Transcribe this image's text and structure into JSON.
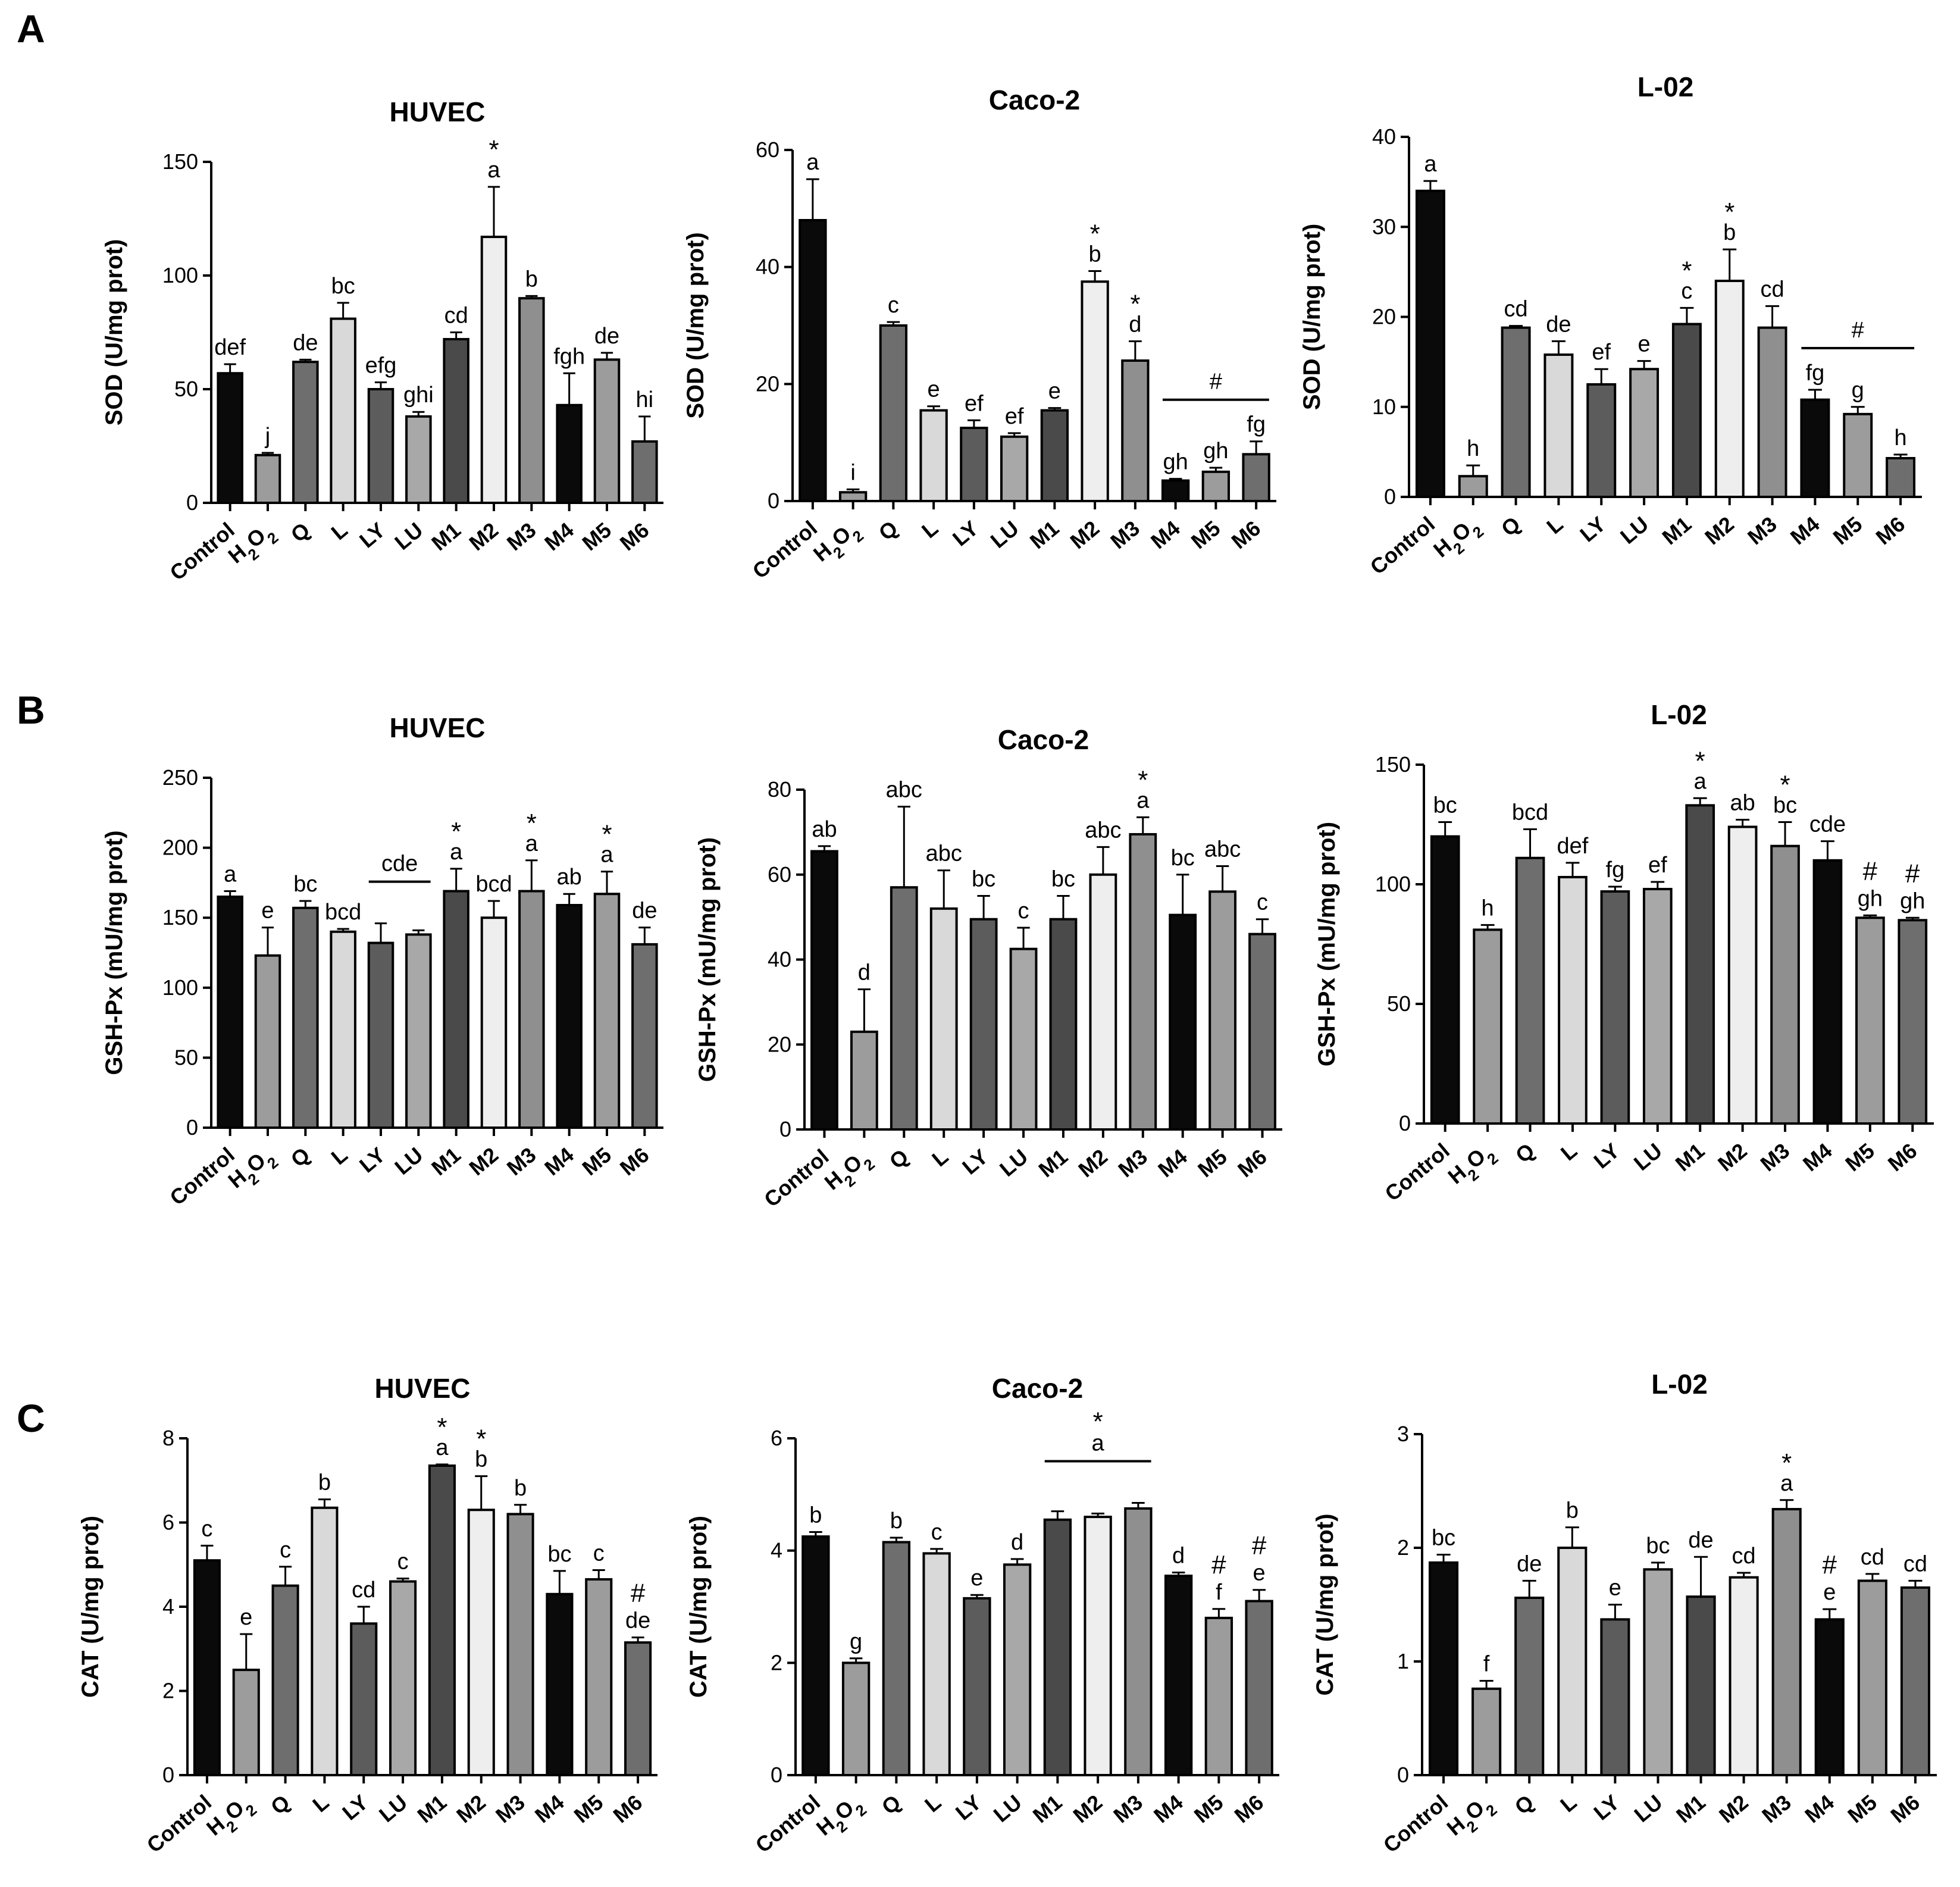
{
  "panels": [
    {
      "letter": "A"
    },
    {
      "letter": "B"
    },
    {
      "letter": "C"
    }
  ],
  "colors": {
    "Control": "#0a0a0a",
    "H2O2": "#9c9c9c",
    "Q": "#6e6e6e",
    "L": "#d9d9d9",
    "LY": "#5c5c5c",
    "LU": "#a8a8a8",
    "M1": "#4a4a4a",
    "M2": "#eeeeee",
    "M3": "#8f8f8f",
    "M4": "#0a0a0a",
    "M5": "#9c9c9c",
    "M6": "#6e6e6e"
  },
  "chart_data": [
    {
      "type": "bar",
      "panel": "A",
      "title": "HUVEC",
      "ylabel": "SOD (U/mg prot)",
      "ylim": [
        0,
        150
      ],
      "yticks": [
        0,
        50,
        100,
        150
      ],
      "categories": [
        "Control",
        "H2O2",
        "Q",
        "L",
        "LY",
        "LU",
        "M1",
        "M2",
        "M3",
        "M4",
        "M5",
        "M6"
      ],
      "values": [
        57,
        21,
        62,
        81,
        50,
        38,
        72,
        117,
        90,
        43,
        63,
        27
      ],
      "errors": [
        4,
        1,
        1,
        7,
        3,
        2,
        3,
        22,
        1,
        14,
        3,
        11
      ],
      "letters": [
        "def",
        "j",
        "de",
        "bc",
        "efg",
        "ghi",
        "cd",
        "a",
        "b",
        "fgh",
        "de",
        "hi"
      ],
      "stars": [
        "",
        "",
        "",
        "",
        "",
        "",
        "",
        "*",
        "",
        "",
        "",
        ""
      ]
    },
    {
      "type": "bar",
      "panel": "A",
      "title": "Caco-2",
      "ylabel": "SOD (U/mg prot)",
      "ylim": [
        0,
        60
      ],
      "yticks": [
        0,
        20,
        40,
        60
      ],
      "categories": [
        "Control",
        "H2O2",
        "Q",
        "L",
        "LY",
        "LU",
        "M1",
        "M2",
        "M3",
        "M4",
        "M5",
        "M6"
      ],
      "values": [
        48,
        1.5,
        30,
        15.5,
        12.5,
        11,
        15.5,
        37.5,
        24,
        3.5,
        5,
        8
      ],
      "errors": [
        7,
        0.5,
        0.6,
        0.7,
        1.3,
        0.6,
        0.4,
        1.8,
        3.3,
        0.3,
        0.7,
        2.2
      ],
      "letters": [
        "a",
        "i",
        "c",
        "e",
        "ef",
        "ef",
        "e",
        "b",
        "d",
        "gh",
        "gh",
        "fg"
      ],
      "stars": [
        "",
        "",
        "",
        "",
        "",
        "",
        "",
        "*",
        "*",
        "",
        "",
        ""
      ],
      "group_mark": {
        "symbol": "#",
        "from": 9,
        "to": 11
      }
    },
    {
      "type": "bar",
      "panel": "A",
      "title": "L-02",
      "ylabel": "SOD (U/mg prot)",
      "ylim": [
        0,
        40
      ],
      "yticks": [
        0,
        10,
        20,
        30,
        40
      ],
      "categories": [
        "Control",
        "H2O2",
        "Q",
        "L",
        "LY",
        "LU",
        "M1",
        "M2",
        "M3",
        "M4",
        "M5",
        "M6"
      ],
      "values": [
        34,
        2.3,
        18.8,
        15.8,
        12.5,
        14.2,
        19.2,
        24,
        18.8,
        10.8,
        9.2,
        4.3
      ],
      "errors": [
        1.1,
        1.2,
        0.2,
        1.5,
        1.7,
        0.9,
        1.8,
        3.5,
        2.4,
        1.1,
        0.8,
        0.4
      ],
      "letters": [
        "a",
        "h",
        "cd",
        "de",
        "ef",
        "e",
        "c",
        "b",
        "cd",
        "fg",
        "g",
        "h"
      ],
      "stars": [
        "",
        "",
        "",
        "",
        "",
        "",
        "*",
        "*",
        "",
        "",
        "",
        ""
      ],
      "group_mark": {
        "symbol": "#",
        "from": 9,
        "to": 11
      }
    },
    {
      "type": "bar",
      "panel": "B",
      "title": "HUVEC",
      "ylabel": "GSH-Px (mU/mg prot)",
      "ylim": [
        0,
        250
      ],
      "yticks": [
        0,
        50,
        100,
        150,
        200,
        250
      ],
      "categories": [
        "Control",
        "H2O2",
        "Q",
        "L",
        "LY",
        "LU",
        "M1",
        "M2",
        "M3",
        "M4",
        "M5",
        "M6"
      ],
      "values": [
        165,
        123,
        157,
        140,
        132,
        138,
        169,
        150,
        169,
        159,
        167,
        131
      ],
      "errors": [
        4,
        20,
        5,
        2,
        14,
        3,
        16,
        12,
        22,
        8,
        16,
        12
      ],
      "letters": [
        "a",
        "e",
        "bc",
        "bcd",
        "",
        "",
        "a",
        "bcd",
        "a",
        "ab",
        "a",
        "de"
      ],
      "stars": [
        "",
        "",
        "",
        "",
        "",
        "",
        "*",
        "",
        "*",
        "",
        "*",
        ""
      ],
      "group_mark": {
        "symbol": "cde",
        "from": 4,
        "to": 5
      }
    },
    {
      "type": "bar",
      "panel": "B",
      "title": "Caco-2",
      "ylabel": "GSH-Px (mU/mg prot)",
      "ylim": [
        0,
        80
      ],
      "yticks": [
        0,
        20,
        40,
        60,
        80
      ],
      "categories": [
        "Control",
        "H2O2",
        "Q",
        "L",
        "LY",
        "LU",
        "M1",
        "M2",
        "M3",
        "M4",
        "M5",
        "M6"
      ],
      "values": [
        65.5,
        23,
        57,
        52,
        49.5,
        42.5,
        49.5,
        60,
        69.5,
        50.5,
        56,
        46
      ],
      "errors": [
        1.2,
        10,
        19,
        9,
        5.5,
        5,
        5.5,
        6.5,
        4,
        9.5,
        6,
        3.5
      ],
      "letters": [
        "ab",
        "d",
        "abc",
        "abc",
        "bc",
        "c",
        "bc",
        "abc",
        "a",
        "bc",
        "abc",
        "c"
      ],
      "stars": [
        "",
        "",
        "",
        "",
        "",
        "",
        "",
        "",
        "*",
        "",
        "",
        ""
      ]
    },
    {
      "type": "bar",
      "panel": "B",
      "title": "L-02",
      "ylabel": "GSH-Px (mU/mg prot)",
      "ylim": [
        0,
        150
      ],
      "yticks": [
        0,
        50,
        100,
        150
      ],
      "categories": [
        "Control",
        "H2O2",
        "Q",
        "L",
        "LY",
        "LU",
        "M1",
        "M2",
        "M3",
        "M4",
        "M5",
        "M6"
      ],
      "values": [
        120,
        81,
        111,
        103,
        97,
        98,
        133,
        124,
        116,
        110,
        86,
        85
      ],
      "errors": [
        6,
        2,
        12,
        6,
        2,
        3,
        3,
        3,
        10,
        8,
        1,
        1
      ],
      "letters": [
        "bc",
        "h",
        "bcd",
        "def",
        "fg",
        "ef",
        "a",
        "ab",
        "bc",
        "cde",
        "gh",
        "gh"
      ],
      "stars": [
        "",
        "",
        "",
        "",
        "",
        "",
        "*",
        "",
        "*",
        "",
        "#",
        "#"
      ]
    },
    {
      "type": "bar",
      "panel": "C",
      "title": "HUVEC",
      "ylabel": "CAT (U/mg prot)",
      "ylim": [
        0,
        8
      ],
      "yticks": [
        0,
        2,
        4,
        6,
        8
      ],
      "categories": [
        "Control",
        "H2O2",
        "Q",
        "L",
        "LY",
        "LU",
        "M1",
        "M2",
        "M3",
        "M4",
        "M5",
        "M6"
      ],
      "values": [
        5.1,
        2.5,
        4.5,
        6.35,
        3.6,
        4.6,
        7.35,
        6.3,
        6.2,
        4.3,
        4.65,
        3.15
      ],
      "errors": [
        0.35,
        0.85,
        0.45,
        0.2,
        0.4,
        0.07,
        0.03,
        0.8,
        0.22,
        0.55,
        0.22,
        0.12
      ],
      "letters": [
        "c",
        "e",
        "c",
        "b",
        "cd",
        "c",
        "a",
        "b",
        "b",
        "bc",
        "c",
        "de"
      ],
      "stars": [
        "",
        "",
        "",
        "",
        "",
        "",
        "*",
        "*",
        "",
        "",
        "",
        "#"
      ]
    },
    {
      "type": "bar",
      "panel": "C",
      "title": "Caco-2",
      "ylabel": "CAT (U/mg prot)",
      "ylim": [
        0,
        6
      ],
      "yticks": [
        0,
        2,
        4,
        6
      ],
      "categories": [
        "Control",
        "H2O2",
        "Q",
        "L",
        "LY",
        "LU",
        "M1",
        "M2",
        "M3",
        "M4",
        "M5",
        "M6"
      ],
      "values": [
        4.25,
        2.0,
        4.15,
        3.95,
        3.15,
        3.75,
        4.55,
        4.6,
        4.75,
        3.55,
        2.8,
        3.1
      ],
      "errors": [
        0.08,
        0.08,
        0.08,
        0.08,
        0.06,
        0.1,
        0.15,
        0.06,
        0.1,
        0.06,
        0.16,
        0.2
      ],
      "letters": [
        "b",
        "g",
        "b",
        "c",
        "e",
        "d",
        "",
        "",
        "",
        "d",
        "f",
        "e"
      ],
      "stars": [
        "",
        "",
        "",
        "",
        "",
        "",
        "",
        "",
        "",
        "",
        "#",
        "#"
      ],
      "group_mark": {
        "symbol": "a",
        "star": "*",
        "from": 6,
        "to": 8
      }
    },
    {
      "type": "bar",
      "panel": "C",
      "title": "L-02",
      "ylabel": "CAT (U/mg prot)",
      "ylim": [
        0,
        3
      ],
      "yticks": [
        0,
        1,
        2,
        3
      ],
      "categories": [
        "Control",
        "H2O2",
        "Q",
        "L",
        "LY",
        "LU",
        "M1",
        "M2",
        "M3",
        "M4",
        "M5",
        "M6"
      ],
      "values": [
        1.87,
        0.76,
        1.56,
        2.0,
        1.37,
        1.81,
        1.57,
        1.74,
        2.34,
        1.37,
        1.71,
        1.65
      ],
      "errors": [
        0.07,
        0.07,
        0.15,
        0.18,
        0.13,
        0.06,
        0.35,
        0.04,
        0.08,
        0.09,
        0.06,
        0.06
      ],
      "letters": [
        "bc",
        "f",
        "de",
        "b",
        "e",
        "bc",
        "de",
        "cd",
        "a",
        "e",
        "cd",
        "cd"
      ],
      "stars": [
        "",
        "",
        "",
        "",
        "",
        "",
        "",
        "",
        "*",
        "#",
        "",
        ""
      ]
    }
  ]
}
